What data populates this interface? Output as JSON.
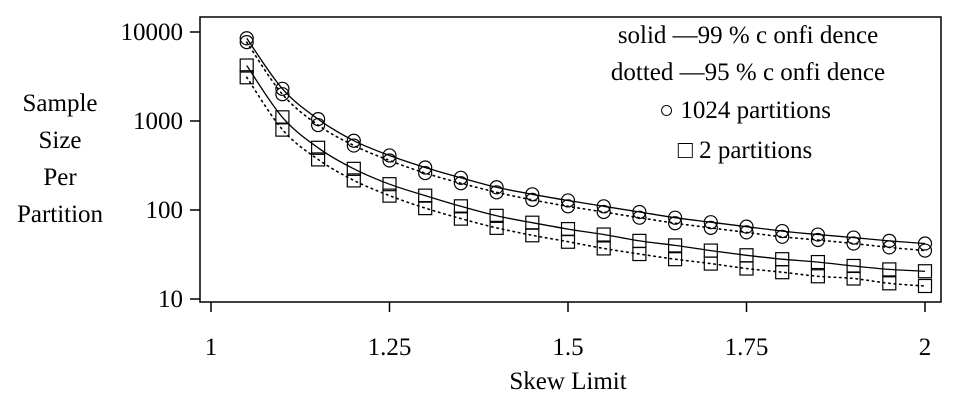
{
  "chart_data": {
    "type": "line",
    "xlabel": "Skew Limit",
    "ylabel_lines": [
      "Sample",
      "Size",
      "Per",
      "Partition"
    ],
    "xlim": [
      1,
      2
    ],
    "ylim": [
      10,
      10000
    ],
    "y_scale": "log",
    "x_ticks": [
      1,
      1.25,
      1.5,
      1.75,
      2
    ],
    "x_tick_labels": [
      "1",
      "1.25",
      "1.5",
      "1.75",
      "2"
    ],
    "y_ticks": [
      10,
      100,
      1000,
      10000
    ],
    "y_tick_labels": [
      "10",
      "100",
      "1000",
      "10000"
    ],
    "grid": false,
    "legend": {
      "placement": "top-right",
      "lines": [
        "solid —99 % c onfi dence",
        "dotted —95 % c onfi dence",
        "○ 1024 partitions",
        "□ 2 partitions"
      ]
    },
    "x": [
      1.05,
      1.1,
      1.15,
      1.2,
      1.25,
      1.3,
      1.35,
      1.4,
      1.45,
      1.5,
      1.55,
      1.6,
      1.65,
      1.7,
      1.75,
      1.8,
      1.85,
      1.9,
      1.95,
      2.0
    ],
    "series": [
      {
        "marker": "circle",
        "line": "solid",
        "values": [
          8500,
          2300,
          1050,
          600,
          410,
          300,
          230,
          180,
          150,
          128,
          110,
          95,
          82,
          73,
          65,
          58,
          53,
          49,
          45,
          42
        ]
      },
      {
        "marker": "circle",
        "line": "dotted",
        "values": [
          7700,
          2000,
          900,
          530,
          360,
          260,
          200,
          158,
          130,
          110,
          95,
          82,
          71,
          63,
          56,
          50,
          46,
          42,
          38,
          35
        ]
      },
      {
        "marker": "square",
        "line": "solid",
        "values": [
          4200,
          1100,
          500,
          290,
          195,
          145,
          110,
          86,
          72,
          61,
          53,
          45,
          40,
          35,
          31,
          28,
          26,
          23.5,
          21.5,
          20.5
        ]
      },
      {
        "marker": "square",
        "line": "dotted",
        "values": [
          3100,
          800,
          370,
          215,
          145,
          105,
          80,
          63,
          52,
          44,
          37,
          32,
          28,
          25,
          22,
          20,
          18,
          17,
          15,
          14
        ]
      }
    ]
  }
}
